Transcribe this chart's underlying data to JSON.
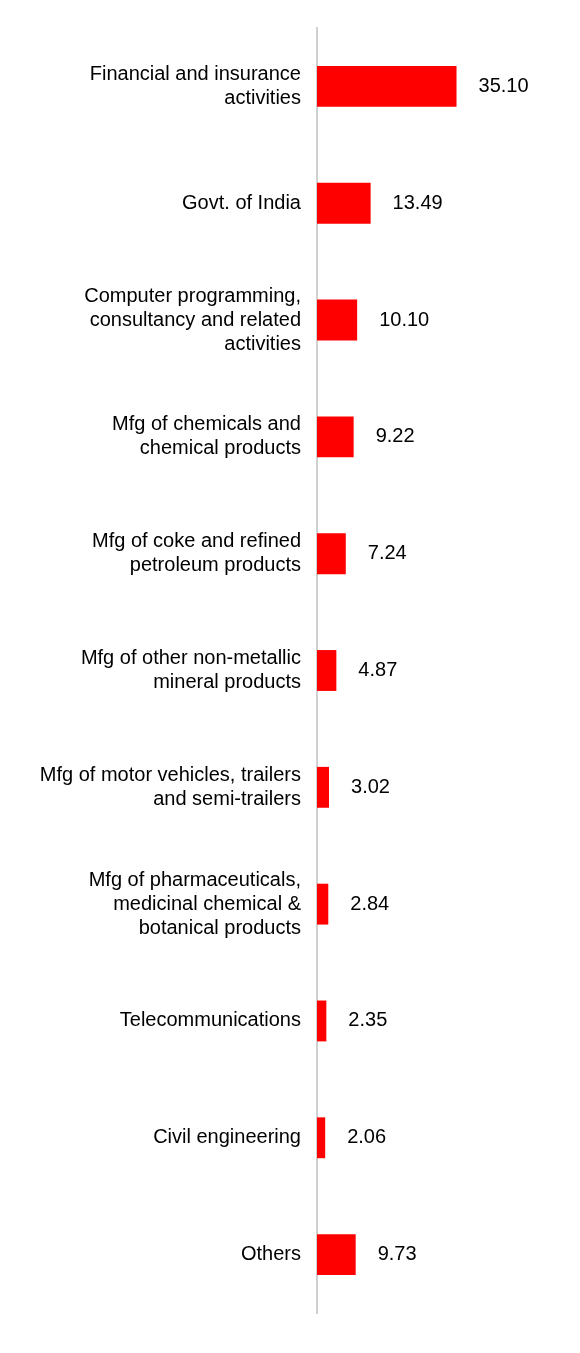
{
  "chart_data": {
    "type": "bar",
    "orientation": "horizontal",
    "color": "#ff0000",
    "categories": [
      "Financial and insurance activities",
      "Govt. of India",
      "Computer programming, consultancy and related activities",
      "Mfg of chemicals and chemical products",
      "Mfg of coke and refined petroleum products",
      "Mfg of other non-metallic mineral products",
      "Mfg of motor vehicles, trailers and semi-trailers",
      "Mfg of pharmaceuticals, medicinal chemical & botanical products",
      "Telecommunications",
      "Civil engineering",
      "Others"
    ],
    "values": [
      35.1,
      13.49,
      10.1,
      9.22,
      7.24,
      4.87,
      3.02,
      2.84,
      2.35,
      2.06,
      9.73
    ],
    "value_labels": [
      "35.10",
      "13.49",
      "10.10",
      "9.22",
      "7.24",
      "4.87",
      "3.02",
      "2.84",
      "2.35",
      "2.06",
      "9.73"
    ],
    "grid": false,
    "legend": false
  }
}
